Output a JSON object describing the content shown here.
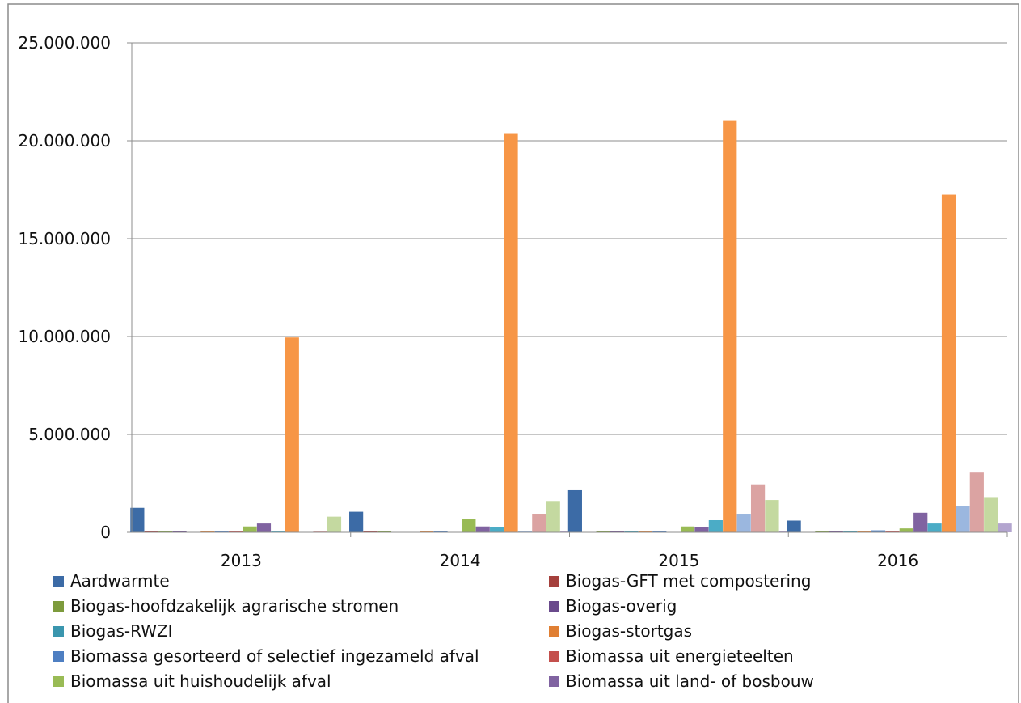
{
  "chart_data": {
    "type": "bar",
    "categories": [
      "2013",
      "2014",
      "2015",
      "2016"
    ],
    "ylim": [
      0,
      25000000
    ],
    "yticks": [
      0,
      5000000,
      10000000,
      15000000,
      20000000,
      25000000
    ],
    "ytick_labels": [
      "0",
      "5.000.000",
      "10.000.000",
      "15.000.000",
      "20.000.000",
      "25.000.000"
    ],
    "grid": true,
    "legend_position": "bottom",
    "series": [
      {
        "name": "Aardwarmte",
        "color": "#3C6BA6",
        "values": [
          1250000,
          1050000,
          2150000,
          600000
        ]
      },
      {
        "name": "Biogas-GFT met compostering",
        "color": "#A5403C",
        "values": [
          50000,
          50000,
          0,
          0
        ]
      },
      {
        "name": "Biogas-hoofdzakelijk agrarische stromen",
        "color": "#7D9B3C",
        "values": [
          50000,
          50000,
          50000,
          50000
        ]
      },
      {
        "name": "Biogas-overig",
        "color": "#6A4A8C",
        "values": [
          50000,
          0,
          50000,
          50000
        ]
      },
      {
        "name": "Biogas-RWZI",
        "color": "#3A96AE",
        "values": [
          0,
          0,
          50000,
          50000
        ]
      },
      {
        "name": "Biogas-stortgas",
        "color": "#E07F33",
        "values": [
          50000,
          50000,
          50000,
          50000
        ]
      },
      {
        "name": "Biomassa gesorteerd of selectief ingezameld afval",
        "color": "#4E7FC2",
        "values": [
          50000,
          50000,
          50000,
          100000
        ]
      },
      {
        "name": "Biomassa uit energieteelten",
        "color": "#C4504D",
        "values": [
          50000,
          0,
          0,
          50000
        ]
      },
      {
        "name": "Biomassa uit huishoudelijk afval",
        "color": "#99BB55",
        "values": [
          300000,
          680000,
          300000,
          200000
        ]
      },
      {
        "name": "Biomassa uit land- of bosbouw",
        "color": "#8063A1",
        "values": [
          450000,
          300000,
          250000,
          1000000
        ]
      },
      {
        "name": "",
        "color": "#4BACC6",
        "values": [
          50000,
          250000,
          620000,
          450000
        ]
      },
      {
        "name": "",
        "color": "#F79646",
        "values": [
          9950000,
          20350000,
          21050000,
          17250000
        ]
      },
      {
        "name": "",
        "color": "#9BB7DF",
        "values": [
          0,
          50000,
          950000,
          1350000
        ]
      },
      {
        "name": "",
        "color": "#DBA3A2",
        "values": [
          50000,
          950000,
          2450000,
          3050000
        ]
      },
      {
        "name": "",
        "color": "#C4D9A0",
        "values": [
          800000,
          1600000,
          1650000,
          1800000
        ]
      },
      {
        "name": "",
        "color": "#B3A5CF",
        "values": [
          0,
          50000,
          50000,
          450000
        ]
      }
    ]
  }
}
